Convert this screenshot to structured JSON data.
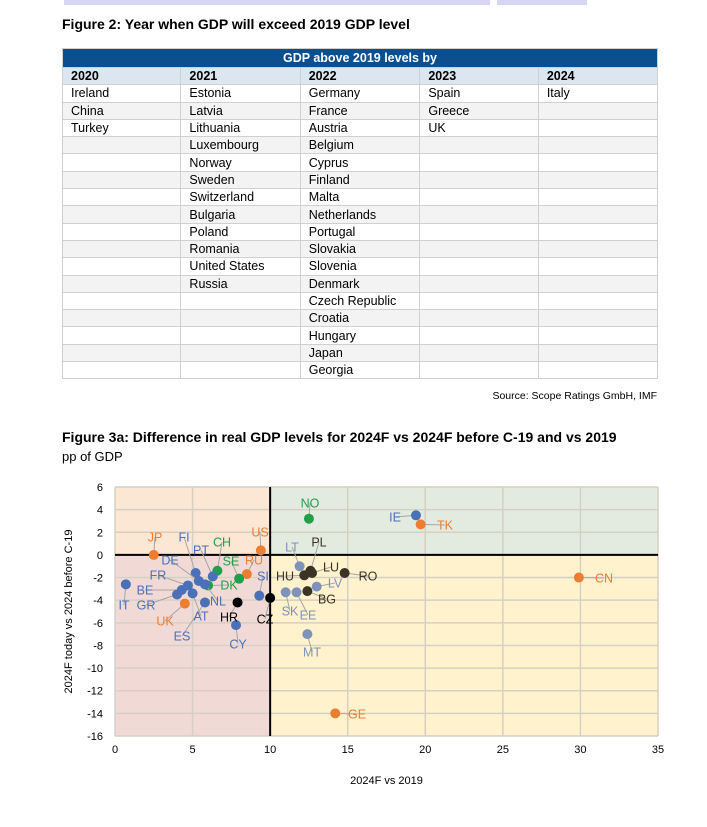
{
  "fig2": {
    "title": "Figure 2: Year when GDP will exceed 2019 GDP level",
    "banner": "GDP above 2019 levels by",
    "columns": [
      "2020",
      "2021",
      "2022",
      "2023",
      "2024"
    ],
    "rows": [
      [
        "Ireland",
        "Estonia",
        "Germany",
        "Spain",
        "Italy"
      ],
      [
        "China",
        "Latvia",
        "France",
        "Greece",
        ""
      ],
      [
        "Turkey",
        "Lithuania",
        "Austria",
        "UK",
        ""
      ],
      [
        "",
        "Luxembourg",
        "Belgium",
        "",
        ""
      ],
      [
        "",
        "Norway",
        "Cyprus",
        "",
        ""
      ],
      [
        "",
        "Sweden",
        "Finland",
        "",
        ""
      ],
      [
        "",
        "Switzerland",
        "Malta",
        "",
        ""
      ],
      [
        "",
        "Bulgaria",
        "Netherlands",
        "",
        ""
      ],
      [
        "",
        "Poland",
        "Portugal",
        "",
        ""
      ],
      [
        "",
        "Romania",
        "Slovakia",
        "",
        ""
      ],
      [
        "",
        "United States",
        "Slovenia",
        "",
        ""
      ],
      [
        "",
        "Russia",
        "Denmark",
        "",
        ""
      ],
      [
        "",
        "",
        "Czech Republic",
        "",
        ""
      ],
      [
        "",
        "",
        "Croatia",
        "",
        ""
      ],
      [
        "",
        "",
        "Hungary",
        "",
        ""
      ],
      [
        "",
        "",
        "Japan",
        "",
        ""
      ],
      [
        "",
        "",
        "Georgia",
        "",
        ""
      ]
    ],
    "source": "Source: Scope Ratings GmbH, IMF"
  },
  "fig3": {
    "title": "Figure 3a: Difference in real GDP levels for 2024F vs 2024F before C-19 and vs 2019",
    "subtitle": "pp of GDP"
  },
  "chart_data": {
    "type": "scatter",
    "xlabel": "2024F vs 2019",
    "ylabel": "2024F today vs 2024 before C-19",
    "xlim": [
      0,
      35
    ],
    "ylim": [
      -16,
      6
    ],
    "xticks": [
      0,
      5,
      10,
      15,
      20,
      25,
      30,
      35
    ],
    "yticks": [
      6,
      4,
      2,
      0,
      -2,
      -4,
      -6,
      -8,
      -10,
      -12,
      -14,
      -16
    ],
    "quadrant_split": {
      "x": 10,
      "y": 0
    },
    "colors": {
      "blue": "#4a70b8",
      "orange": "#ed7d31",
      "green": "#1fa04a",
      "dark": "#3b3323",
      "black": "#000000",
      "lightblue": "#7f93ba"
    },
    "points": [
      {
        "label": "JP",
        "x": 2.5,
        "y": 0,
        "c": "orange"
      },
      {
        "label": "US",
        "x": 9.4,
        "y": 0.4,
        "c": "orange"
      },
      {
        "label": "RU",
        "x": 8.5,
        "y": -1.7,
        "c": "orange"
      },
      {
        "label": "UK",
        "x": 4.5,
        "y": -4.3,
        "c": "orange"
      },
      {
        "label": "GE",
        "x": 14.2,
        "y": -14,
        "c": "orange"
      },
      {
        "label": "TK",
        "x": 19.7,
        "y": 2.7,
        "c": "orange"
      },
      {
        "label": "CN",
        "x": 29.9,
        "y": -2,
        "c": "orange"
      },
      {
        "label": "IE",
        "x": 19.4,
        "y": 3.5,
        "c": "blue"
      },
      {
        "label": "NO",
        "x": 12.5,
        "y": 3.2,
        "c": "green"
      },
      {
        "label": "CH",
        "x": 6.6,
        "y": -1.4,
        "c": "green"
      },
      {
        "label": "SE",
        "x": 8,
        "y": -2.1,
        "c": "green"
      },
      {
        "label": "DK",
        "x": 6,
        "y": -2.7,
        "c": "green"
      },
      {
        "label": "IT",
        "x": 0.7,
        "y": -2.6,
        "c": "blue"
      },
      {
        "label": "FI",
        "x": 5.2,
        "y": -1.6,
        "c": "blue"
      },
      {
        "label": "PT",
        "x": 6.3,
        "y": -1.9,
        "c": "blue"
      },
      {
        "label": "DE",
        "x": 5.4,
        "y": -2.3,
        "c": "blue"
      },
      {
        "label": "FR",
        "x": 4.7,
        "y": -2.7,
        "c": "blue"
      },
      {
        "label": "BE",
        "x": 4.3,
        "y": -3.1,
        "c": "blue"
      },
      {
        "label": "GR",
        "x": 4,
        "y": -3.5,
        "c": "blue"
      },
      {
        "label": "ES",
        "x": 5.8,
        "y": -4.2,
        "c": "blue"
      },
      {
        "label": "AT",
        "x": 5,
        "y": -3.4,
        "c": "blue"
      },
      {
        "label": "NL",
        "x": 5.8,
        "y": -2.6,
        "c": "blue"
      },
      {
        "label": "CY",
        "x": 7.8,
        "y": -6.2,
        "c": "blue"
      },
      {
        "label": "SI",
        "x": 9.3,
        "y": -3.6,
        "c": "blue"
      },
      {
        "label": "HR",
        "x": 7.9,
        "y": -4.2,
        "c": "black"
      },
      {
        "label": "CZ",
        "x": 10,
        "y": -3.8,
        "c": "black"
      },
      {
        "label": "LT",
        "x": 11.9,
        "y": -1,
        "c": "lightblue"
      },
      {
        "label": "PL",
        "x": 12.6,
        "y": -1.4,
        "c": "dark"
      },
      {
        "label": "HU",
        "x": 12.2,
        "y": -1.8,
        "c": "dark"
      },
      {
        "label": "LU",
        "x": 12.7,
        "y": -1.6,
        "c": "dark"
      },
      {
        "label": "RO",
        "x": 14.8,
        "y": -1.6,
        "c": "dark"
      },
      {
        "label": "LV",
        "x": 13,
        "y": -2.8,
        "c": "lightblue"
      },
      {
        "label": "BG",
        "x": 12.4,
        "y": -3.2,
        "c": "dark"
      },
      {
        "label": "SK",
        "x": 11,
        "y": -3.3,
        "c": "lightblue"
      },
      {
        "label": "EE",
        "x": 11.7,
        "y": -3.3,
        "c": "lightblue"
      },
      {
        "label": "MT",
        "x": 12.4,
        "y": -7,
        "c": "lightblue"
      }
    ]
  }
}
